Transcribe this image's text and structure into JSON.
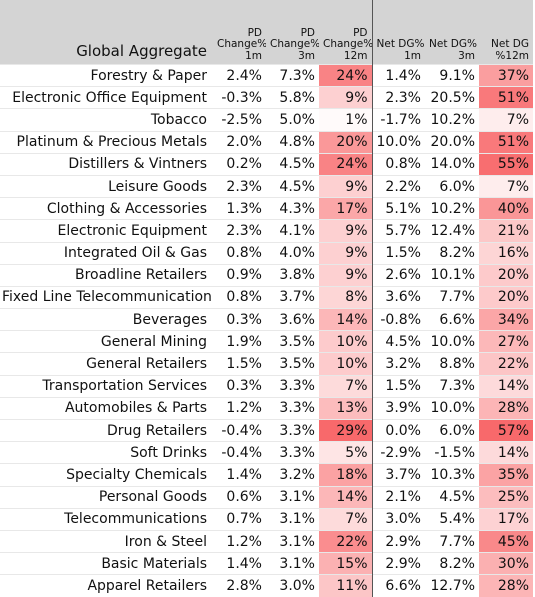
{
  "chart_data": {
    "type": "table",
    "columns": [
      {
        "key": "name",
        "label": [
          "Global Aggregate"
        ]
      },
      {
        "key": "pd1m",
        "label": [
          "PD",
          "Change%",
          "1m"
        ]
      },
      {
        "key": "pd3m",
        "label": [
          "PD",
          "Change%",
          "3m"
        ]
      },
      {
        "key": "pd12m",
        "label": [
          "PD",
          "Change%",
          "12m"
        ]
      },
      {
        "key": "dg1m",
        "label": [
          "Net DG%",
          "1m"
        ]
      },
      {
        "key": "dg3m",
        "label": [
          "Net DG%",
          "3m"
        ]
      },
      {
        "key": "dg12m",
        "label": [
          "Net DG",
          "%12m"
        ]
      }
    ],
    "heat_color": "#f8696b",
    "heat_columns": [
      "pd12m",
      "dg12m"
    ],
    "rows": [
      [
        "Forestry & Paper",
        "2.4%",
        "7.3%",
        "24%",
        "1.4%",
        "9.1%",
        "37%"
      ],
      [
        "Electronic Office Equipment",
        "-0.3%",
        "5.8%",
        "9%",
        "2.3%",
        "20.5%",
        "51%"
      ],
      [
        "Tobacco",
        "-2.5%",
        "5.0%",
        "1%",
        "-1.7%",
        "10.2%",
        "7%"
      ],
      [
        "Platinum & Precious Metals",
        "2.0%",
        "4.8%",
        "20%",
        "10.0%",
        "20.0%",
        "51%"
      ],
      [
        "Distillers & Vintners",
        "0.2%",
        "4.5%",
        "24%",
        "0.8%",
        "14.0%",
        "55%"
      ],
      [
        "Leisure Goods",
        "2.3%",
        "4.5%",
        "9%",
        "2.2%",
        "6.0%",
        "7%"
      ],
      [
        "Clothing & Accessories",
        "1.3%",
        "4.3%",
        "17%",
        "5.1%",
        "10.2%",
        "40%"
      ],
      [
        "Electronic Equipment",
        "2.3%",
        "4.1%",
        "9%",
        "5.7%",
        "12.4%",
        "21%"
      ],
      [
        "Integrated Oil & Gas",
        "0.8%",
        "4.0%",
        "9%",
        "1.5%",
        "8.2%",
        "16%"
      ],
      [
        "Broadline Retailers",
        "0.9%",
        "3.8%",
        "9%",
        "2.6%",
        "10.1%",
        "20%"
      ],
      [
        "Fixed Line Telecommunication",
        "0.8%",
        "3.7%",
        "8%",
        "3.6%",
        "7.7%",
        "20%"
      ],
      [
        "Beverages",
        "0.3%",
        "3.6%",
        "14%",
        "-0.8%",
        "6.6%",
        "34%"
      ],
      [
        "General Mining",
        "1.9%",
        "3.5%",
        "10%",
        "4.5%",
        "10.0%",
        "27%"
      ],
      [
        "General Retailers",
        "1.5%",
        "3.5%",
        "10%",
        "3.2%",
        "8.8%",
        "22%"
      ],
      [
        "Transportation Services",
        "0.3%",
        "3.3%",
        "7%",
        "1.5%",
        "7.3%",
        "14%"
      ],
      [
        "Automobiles & Parts",
        "1.2%",
        "3.3%",
        "13%",
        "3.9%",
        "10.0%",
        "28%"
      ],
      [
        "Drug Retailers",
        "-0.4%",
        "3.3%",
        "29%",
        "0.0%",
        "6.0%",
        "57%"
      ],
      [
        "Soft Drinks",
        "-0.4%",
        "3.3%",
        "5%",
        "-2.9%",
        "-1.5%",
        "14%"
      ],
      [
        "Specialty Chemicals",
        "1.4%",
        "3.2%",
        "18%",
        "3.7%",
        "10.3%",
        "35%"
      ],
      [
        "Personal Goods",
        "0.6%",
        "3.1%",
        "14%",
        "2.1%",
        "4.5%",
        "25%"
      ],
      [
        "Telecommunications",
        "0.7%",
        "3.1%",
        "7%",
        "3.0%",
        "5.4%",
        "17%"
      ],
      [
        "Iron & Steel",
        "1.2%",
        "3.1%",
        "22%",
        "2.9%",
        "7.7%",
        "45%"
      ],
      [
        "Basic Materials",
        "1.4%",
        "3.1%",
        "15%",
        "2.9%",
        "8.2%",
        "30%"
      ],
      [
        "Apparel Retailers",
        "2.8%",
        "3.0%",
        "11%",
        "6.6%",
        "12.7%",
        "28%"
      ]
    ]
  }
}
